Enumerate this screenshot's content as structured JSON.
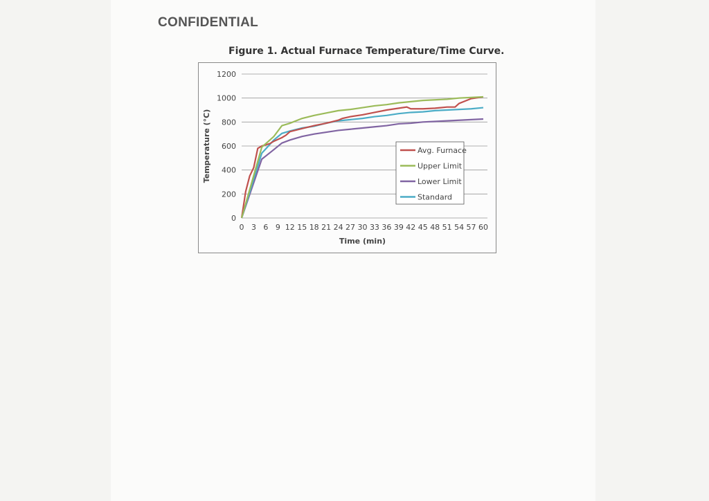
{
  "header": {
    "confidential": "CONFIDENTIAL",
    "figure_title": "Figure 1. Actual Furnace Temperature/Time Curve."
  },
  "chart_data": {
    "type": "line",
    "title": "Figure 1. Actual Furnace Temperature/Time Curve.",
    "xlabel": "Time (min)",
    "ylabel": "Temperature (°C)",
    "xlim": [
      0,
      60
    ],
    "ylim": [
      0,
      1200
    ],
    "xticks": [
      "0",
      "3",
      "6",
      "9",
      "12",
      "15",
      "18",
      "21",
      "24",
      "27",
      "30",
      "33",
      "36",
      "39",
      "42",
      "45",
      "48",
      "51",
      "54",
      "57",
      "60"
    ],
    "yticks": [
      "0",
      "200",
      "400",
      "600",
      "800",
      "1000",
      "1200"
    ],
    "grid": "horizontal",
    "legend": "center-right",
    "series": [
      {
        "name": "Avg. Furnace",
        "color": "#c0504d",
        "points": [
          [
            0,
            0
          ],
          [
            1,
            220
          ],
          [
            2,
            350
          ],
          [
            3,
            420
          ],
          [
            4,
            580
          ],
          [
            5,
            600
          ],
          [
            6,
            610
          ],
          [
            7,
            620
          ],
          [
            8,
            640
          ],
          [
            9,
            655
          ],
          [
            10,
            670
          ],
          [
            11,
            690
          ],
          [
            12,
            720
          ],
          [
            15,
            745
          ],
          [
            18,
            770
          ],
          [
            21,
            790
          ],
          [
            24,
            815
          ],
          [
            25,
            830
          ],
          [
            27,
            845
          ],
          [
            30,
            860
          ],
          [
            33,
            880
          ],
          [
            36,
            900
          ],
          [
            39,
            915
          ],
          [
            41,
            925
          ],
          [
            42,
            910
          ],
          [
            45,
            910
          ],
          [
            48,
            915
          ],
          [
            51,
            925
          ],
          [
            53,
            925
          ],
          [
            54,
            955
          ],
          [
            57,
            995
          ],
          [
            60,
            1010
          ]
        ]
      },
      {
        "name": "Upper Limit",
        "color": "#9bbb59",
        "points": [
          [
            0,
            0
          ],
          [
            5,
            590
          ],
          [
            6,
            620
          ],
          [
            8,
            680
          ],
          [
            10,
            770
          ],
          [
            12,
            790
          ],
          [
            15,
            830
          ],
          [
            18,
            855
          ],
          [
            21,
            875
          ],
          [
            24,
            895
          ],
          [
            27,
            905
          ],
          [
            30,
            920
          ],
          [
            33,
            935
          ],
          [
            36,
            945
          ],
          [
            39,
            960
          ],
          [
            42,
            970
          ],
          [
            45,
            980
          ],
          [
            48,
            985
          ],
          [
            51,
            990
          ],
          [
            54,
            1000
          ],
          [
            57,
            1005
          ],
          [
            60,
            1010
          ]
        ]
      },
      {
        "name": "Lower Limit",
        "color": "#8064a2",
        "points": [
          [
            0,
            0
          ],
          [
            5,
            490
          ],
          [
            8,
            570
          ],
          [
            10,
            625
          ],
          [
            12,
            650
          ],
          [
            15,
            680
          ],
          [
            18,
            700
          ],
          [
            21,
            715
          ],
          [
            24,
            730
          ],
          [
            27,
            740
          ],
          [
            30,
            750
          ],
          [
            33,
            760
          ],
          [
            36,
            770
          ],
          [
            39,
            785
          ],
          [
            42,
            790
          ],
          [
            45,
            800
          ],
          [
            48,
            805
          ],
          [
            51,
            810
          ],
          [
            54,
            815
          ],
          [
            57,
            820
          ],
          [
            60,
            825
          ]
        ]
      },
      {
        "name": "Standard",
        "color": "#4bacc6",
        "points": [
          [
            0,
            0
          ],
          [
            5,
            540
          ],
          [
            8,
            650
          ],
          [
            10,
            705
          ],
          [
            12,
            725
          ],
          [
            15,
            750
          ],
          [
            18,
            765
          ],
          [
            21,
            790
          ],
          [
            24,
            810
          ],
          [
            27,
            820
          ],
          [
            30,
            830
          ],
          [
            33,
            845
          ],
          [
            36,
            855
          ],
          [
            39,
            870
          ],
          [
            42,
            880
          ],
          [
            45,
            885
          ],
          [
            48,
            895
          ],
          [
            51,
            900
          ],
          [
            54,
            905
          ],
          [
            57,
            910
          ],
          [
            60,
            920
          ]
        ]
      }
    ]
  }
}
